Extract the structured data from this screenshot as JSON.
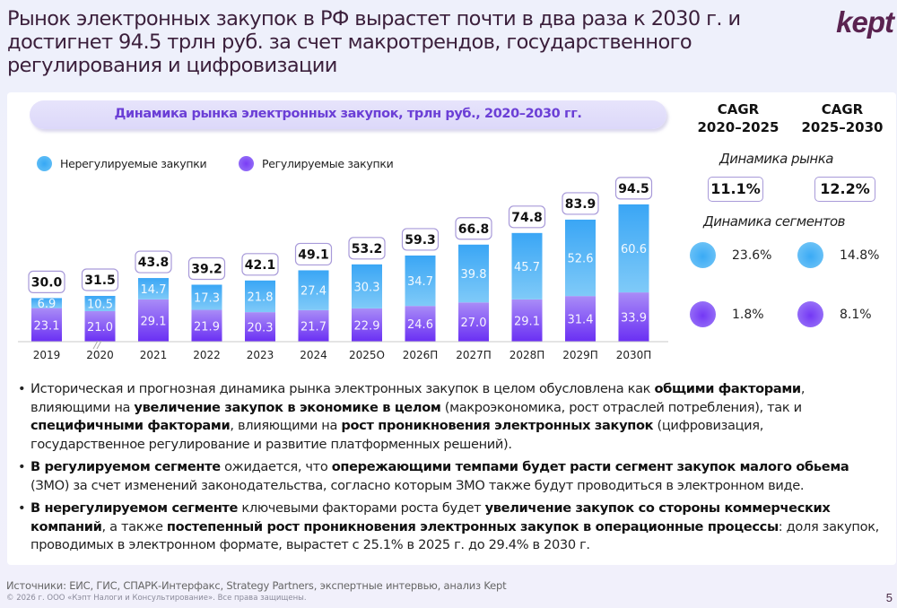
{
  "header": {
    "title": "Рынок электронных закупок в РФ вырастет почти в два раза к 2030 г. и достигнет 94.5 трлн руб. за счет макротрендов, государственного регулирования и цифровизации",
    "logo": "kept"
  },
  "chart_data": {
    "type": "bar",
    "stacked": true,
    "title": "Динамика рынка электронных закупок, трлн руб., 2020–2030 гг.",
    "xlabel": "",
    "ylabel": "",
    "categories": [
      "2019",
      "2020",
      "2021",
      "2022",
      "2023",
      "2024",
      "2025О",
      "2026П",
      "2027П",
      "2028П",
      "2029П",
      "2030П"
    ],
    "series": [
      {
        "name": "Регулируемые закупки",
        "color": "#7b45f5",
        "values": [
          23.1,
          21.0,
          29.1,
          21.9,
          20.3,
          21.7,
          22.9,
          24.6,
          27.0,
          29.1,
          31.4,
          33.9
        ]
      },
      {
        "name": "Нерегулируемые закупки",
        "color": "#3aa8f5",
        "values": [
          6.9,
          10.5,
          14.7,
          17.3,
          21.8,
          27.4,
          30.3,
          34.7,
          39.8,
          45.7,
          52.6,
          60.6
        ]
      }
    ],
    "totals": [
      "30.0",
      "31.5",
      "43.8",
      "39.2",
      "42.1",
      "49.1",
      "53.2",
      "59.3",
      "66.8",
      "74.8",
      "83.9",
      "94.5"
    ],
    "segment_labels": {
      "regulated": [
        "23.1",
        "21.0",
        "29.1",
        "21.9",
        "20.3",
        "21.7",
        "22.9",
        "24.6",
        "27.0",
        "29.1",
        "31.4",
        "33.9"
      ],
      "unregulated": [
        "6.9",
        "10.5",
        "14.7",
        "17.3",
        "21.8",
        "27.4",
        "30.3",
        "34.7",
        "39.8",
        "45.7",
        "52.6",
        "60.6"
      ]
    },
    "legend": [
      "Нерегулируемые закупки",
      "Регулируемые закупки"
    ],
    "legend_position": "top-left",
    "axis_break_after": "2020",
    "grid": false
  },
  "cagr": {
    "col1_header_line1": "CAGR",
    "col1_header_line2": "2020–2025",
    "col2_header_line1": "CAGR",
    "col2_header_line2": "2025–2030",
    "market_label": "Динамика рынка",
    "market_2020_2025": "11.1%",
    "market_2025_2030": "12.2%",
    "segments_label": "Динамика сегментов",
    "unreg_2020_2025": "23.6%",
    "unreg_2025_2030": "14.8%",
    "reg_2020_2025": "1.8%",
    "reg_2025_2030": "8.1%",
    "colors": {
      "unregulated": "#3aa8f5",
      "regulated": "#7b45f5"
    }
  },
  "bullets": [
    {
      "parts": [
        {
          "t": "Историческая и прогнозная динамика рынка электронных закупок в целом обусловлена как ",
          "b": false
        },
        {
          "t": "общими факторами",
          "b": true
        },
        {
          "t": ", влияющими на ",
          "b": false
        },
        {
          "t": "увеличение закупок в экономике в целом",
          "b": true
        },
        {
          "t": " (макроэкономика, рост отраслей потребления), так и ",
          "b": false
        },
        {
          "t": "специфичными факторами",
          "b": true
        },
        {
          "t": ", влияющими на ",
          "b": false
        },
        {
          "t": "рост проникновения электронных закупок",
          "b": true
        },
        {
          "t": " (цифровизация, государственное регулирование и развитие платформенных решений).",
          "b": false
        }
      ]
    },
    {
      "parts": [
        {
          "t": "В регулируемом сегменте",
          "b": true
        },
        {
          "t": " ожидается, что ",
          "b": false
        },
        {
          "t": "опережающими темпами будет расти сегмент закупок малого обьема",
          "b": true
        },
        {
          "t": " (ЗМО) за счет изменений законодательства, согласно которым ЗМО также будут проводиться в электронном виде.",
          "b": false
        }
      ]
    },
    {
      "parts": [
        {
          "t": "В нерегулируемом сегменте",
          "b": true
        },
        {
          "t": " ключевыми факторами роста будет ",
          "b": false
        },
        {
          "t": "увеличение закупок со стороны коммерческих компаний",
          "b": true
        },
        {
          "t": ", а также ",
          "b": false
        },
        {
          "t": "постепенный рост проникновения электронных закупок в операционные процессы",
          "b": true
        },
        {
          "t": ": доля закупок, проводимых в электронном формате, вырастет с 25.1% в 2025 г. до 29.4% в 2030 г.",
          "b": false
        }
      ]
    }
  ],
  "footer": {
    "sources": "Источники: ЕИС, ГИС, СПАРК-Интерфакс, Strategy Partners, экспертные интервью, анализ Kept",
    "copyright": "© 2026 г. ООО «Кэпт Налоги и Консультирование». Все права защищены.",
    "page_number": "5"
  }
}
